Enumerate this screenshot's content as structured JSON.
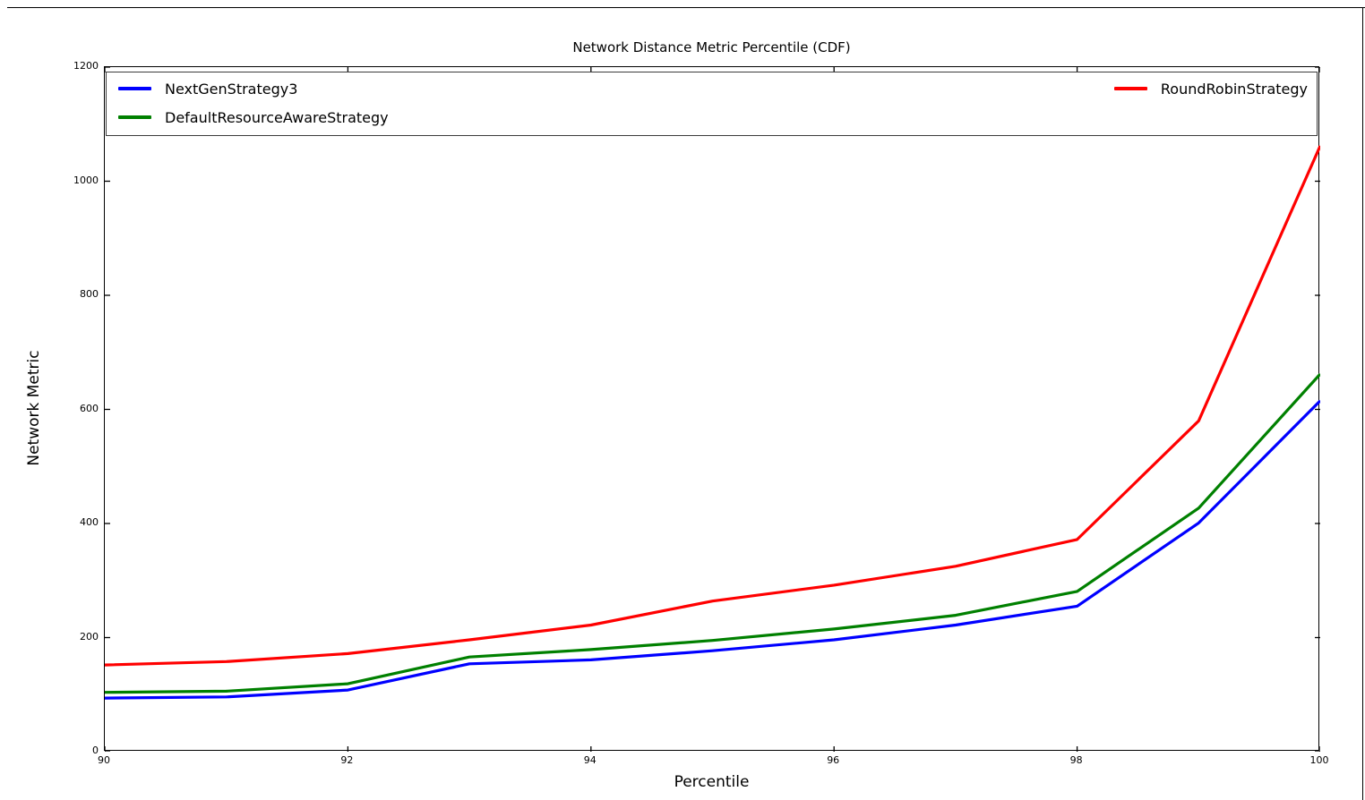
{
  "figure": {
    "title": "Network Distance Metric Percentile (CDF)",
    "xlabel": "Percentile",
    "ylabel": "Network Metric"
  },
  "chart_data": {
    "type": "line",
    "title": "Network Distance Metric Percentile (CDF)",
    "xlabel": "Percentile",
    "ylabel": "Network Metric",
    "xlim": [
      90,
      100
    ],
    "ylim": [
      0,
      1200
    ],
    "xticks": [
      90,
      92,
      94,
      96,
      98,
      100
    ],
    "yticks": [
      0,
      200,
      400,
      600,
      800,
      1000,
      1200
    ],
    "grid": false,
    "legend_position": "top inside plot, full-width box, two columns",
    "x": [
      90,
      91,
      92,
      93,
      94,
      95,
      96,
      97,
      98,
      99,
      100
    ],
    "series": [
      {
        "name": "NextGenStrategy3",
        "color": "#0000ff",
        "values": [
          94,
          96,
          108,
          154,
          161,
          177,
          196,
          222,
          255,
          401,
          615
        ]
      },
      {
        "name": "DefaultResourceAwareStrategy",
        "color": "#008000",
        "values": [
          104,
          106,
          119,
          166,
          179,
          195,
          215,
          239,
          281,
          427,
          662
        ]
      },
      {
        "name": "RoundRobinStrategy",
        "color": "#ff0000",
        "values": [
          152,
          158,
          172,
          196,
          222,
          264,
          292,
          325,
          372,
          580,
          1062
        ]
      }
    ]
  }
}
